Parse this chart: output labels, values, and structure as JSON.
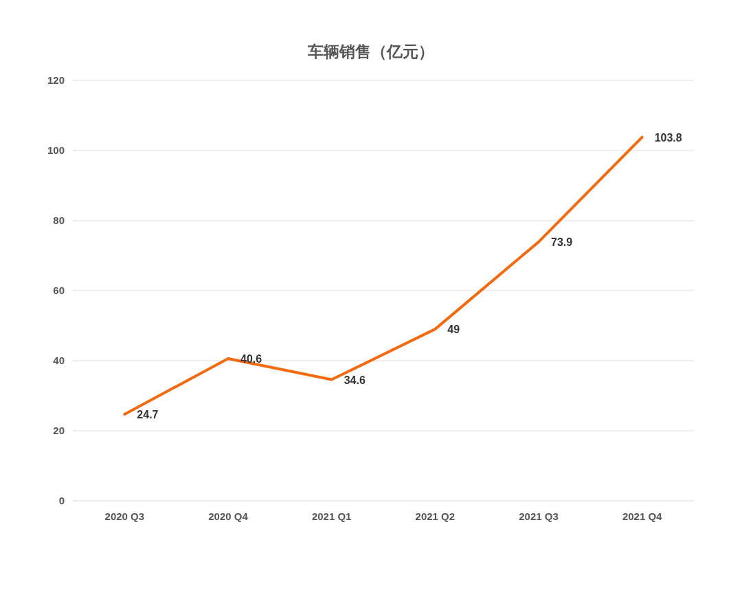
{
  "chart_data": {
    "type": "line",
    "title": "车辆销售（亿元）",
    "categories": [
      "2020 Q3",
      "2020 Q4",
      "2021 Q1",
      "2021 Q2",
      "2021 Q3",
      "2021 Q4"
    ],
    "series": [
      {
        "color": "#f26b10",
        "values": [
          24.7,
          40.6,
          34.6,
          49,
          73.9,
          103.8
        ]
      }
    ],
    "ylim": [
      0,
      120
    ],
    "yticks": [
      0,
      20,
      40,
      60,
      80,
      100,
      120
    ],
    "grid": "y",
    "data_labels": true
  }
}
